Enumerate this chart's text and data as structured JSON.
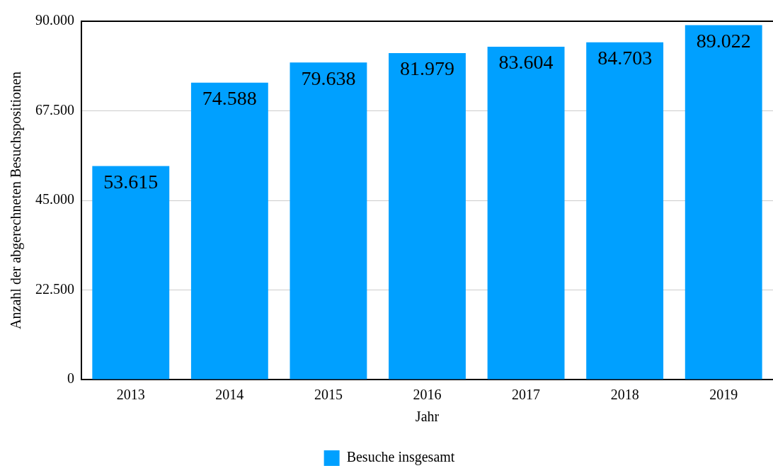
{
  "chart_data": {
    "type": "bar",
    "xlabel": "Jahr",
    "ylabel": "Anzahl der abgerechneten Besuchspositionen",
    "categories": [
      "2013",
      "2014",
      "2015",
      "2016",
      "2017",
      "2018",
      "2019"
    ],
    "series": [
      {
        "name": "Besuche insgesamt",
        "color": "#00a0ff",
        "values": [
          53615,
          74588,
          79638,
          81979,
          83604,
          84703,
          89022
        ],
        "value_labels": [
          "53.615",
          "74.588",
          "79.638",
          "81.979",
          "83.604",
          "84.703",
          "89.022"
        ]
      }
    ],
    "ylim": [
      0,
      90000
    ],
    "yticks": [
      {
        "value": 0,
        "label": "0"
      },
      {
        "value": 22500,
        "label": "22.500"
      },
      {
        "value": 45000,
        "label": "45.000"
      },
      {
        "value": 67500,
        "label": "67.500"
      },
      {
        "value": 90000,
        "label": "90.000"
      }
    ],
    "grid": "y",
    "legend": "bottom"
  }
}
